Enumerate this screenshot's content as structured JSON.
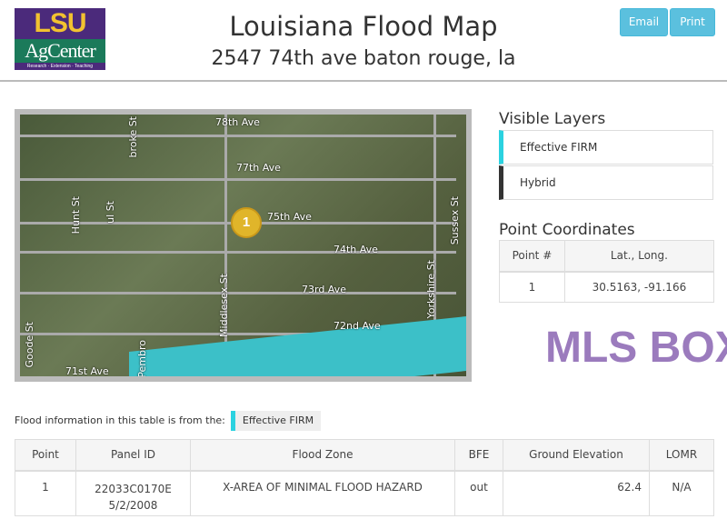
{
  "header": {
    "logo_text": "LSU AgCenter Research · Extension · Teaching",
    "title": "Louisiana Flood Map",
    "address": "2547 74th ave baton rouge, la",
    "email_label": "Email",
    "print_label": "Print"
  },
  "map": {
    "marker_label": "1",
    "streets": [
      "78th Ave",
      "77th Ave",
      "75th Ave",
      "74th Ave",
      "73rd Ave",
      "72nd Ave",
      "71st Ave",
      "Hunt St",
      "Middlesex St",
      "Yorkshire St",
      "Sussex St",
      "Goode St",
      "Pembro",
      "broke St",
      "ul St"
    ]
  },
  "layers": {
    "title": "Visible Layers",
    "items": [
      {
        "label": "Effective FIRM",
        "color": "#2bd2e0"
      },
      {
        "label": "Hybrid",
        "color": "#333333"
      }
    ]
  },
  "coords": {
    "title": "Point Coordinates",
    "headers": [
      "Point #",
      "Lat., Long."
    ],
    "rows": [
      [
        "1",
        "30.5163, -91.166"
      ]
    ]
  },
  "flood": {
    "note": "Flood information in this table is from the:",
    "source": "Effective FIRM",
    "headers": [
      "Point",
      "Panel ID",
      "Flood Zone",
      "BFE",
      "Ground Elevation",
      "LOMR"
    ],
    "rows": [
      {
        "point": "1",
        "panel_id": "22033C0170E",
        "panel_date": "5/2/2008",
        "zone": "X-AREA OF MINIMAL FLOOD HAZARD",
        "bfe": "out",
        "elev": "62.4",
        "lomr": "N/A"
      }
    ]
  },
  "watermark": "MLS BOX"
}
